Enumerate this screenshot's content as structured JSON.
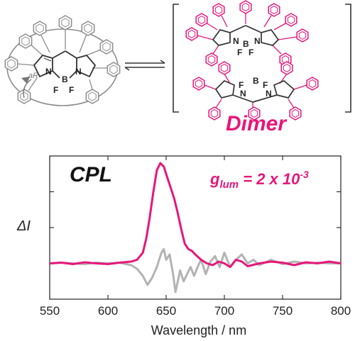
{
  "figure": {
    "dimer_label": "Dimer",
    "cpl_label": "CPL",
    "glum": {
      "symbol": "g",
      "subscript": "lum",
      "equals": " = 2 x 10",
      "exponent": "-3"
    },
    "monomer_stereo_label": "aR",
    "atoms": {
      "N": "N",
      "B": "B",
      "F": "F"
    },
    "colors": {
      "accent": "#e6177a",
      "reference": "#b3b3b3",
      "monomer": "#8c8c8c"
    }
  },
  "chart_data": {
    "type": "line",
    "xlabel": "Wavelength / nm",
    "ylabel": "ΔI",
    "xlim": [
      550,
      800
    ],
    "ylim": [
      -1.0,
      3.0
    ],
    "xticks": [
      550,
      600,
      650,
      700,
      750,
      800
    ],
    "ytick_values": [
      1.0,
      2.0
    ],
    "series": [
      {
        "color": "#e6177a",
        "x": [
          550,
          560,
          570,
          580,
          590,
          600,
          610,
          620,
          625,
          630,
          633,
          636,
          639,
          642,
          645,
          648,
          651,
          654,
          657,
          660,
          663,
          666,
          669,
          672,
          675,
          680,
          685,
          690,
          695,
          700,
          705,
          710,
          715,
          720,
          730,
          740,
          750,
          760,
          770,
          780,
          790,
          800
        ],
        "y": [
          0.0,
          0.02,
          -0.02,
          0.03,
          0.0,
          -0.02,
          0.02,
          0.05,
          0.1,
          0.3,
          0.7,
          1.3,
          2.0,
          2.6,
          2.8,
          2.7,
          2.4,
          2.1,
          1.8,
          1.4,
          0.95,
          0.55,
          0.4,
          0.35,
          0.25,
          0.1,
          0.0,
          -0.05,
          0.05,
          0.0,
          -0.1,
          0.1,
          0.05,
          -0.08,
          0.0,
          0.05,
          0.02,
          -0.05,
          0.03,
          0.0,
          0.05,
          0.0
        ]
      },
      {
        "color": "#b3b3b3",
        "x": [
          550,
          560,
          570,
          580,
          590,
          600,
          610,
          620,
          625,
          630,
          634,
          638,
          642,
          646,
          648,
          650,
          653,
          656,
          658,
          660,
          662,
          665,
          668,
          671,
          674,
          677,
          680,
          684,
          688,
          692,
          696,
          700,
          705,
          710,
          715,
          720,
          725,
          730,
          740,
          750,
          760,
          770,
          780,
          790,
          800
        ],
        "y": [
          0.0,
          0.02,
          0.0,
          -0.02,
          0.02,
          0.0,
          0.02,
          -0.05,
          -0.15,
          -0.35,
          -0.6,
          -0.4,
          -0.1,
          0.3,
          0.4,
          0.1,
          0.25,
          -0.3,
          -0.8,
          -0.5,
          -0.2,
          -0.5,
          -0.3,
          -0.1,
          -0.35,
          -0.1,
          0.1,
          -0.3,
          0.05,
          0.2,
          -0.1,
          0.3,
          -0.1,
          0.1,
          0.25,
          0.0,
          0.1,
          -0.05,
          0.1,
          -0.02,
          0.05,
          0.0,
          0.02,
          0.0,
          0.0
        ]
      }
    ]
  }
}
